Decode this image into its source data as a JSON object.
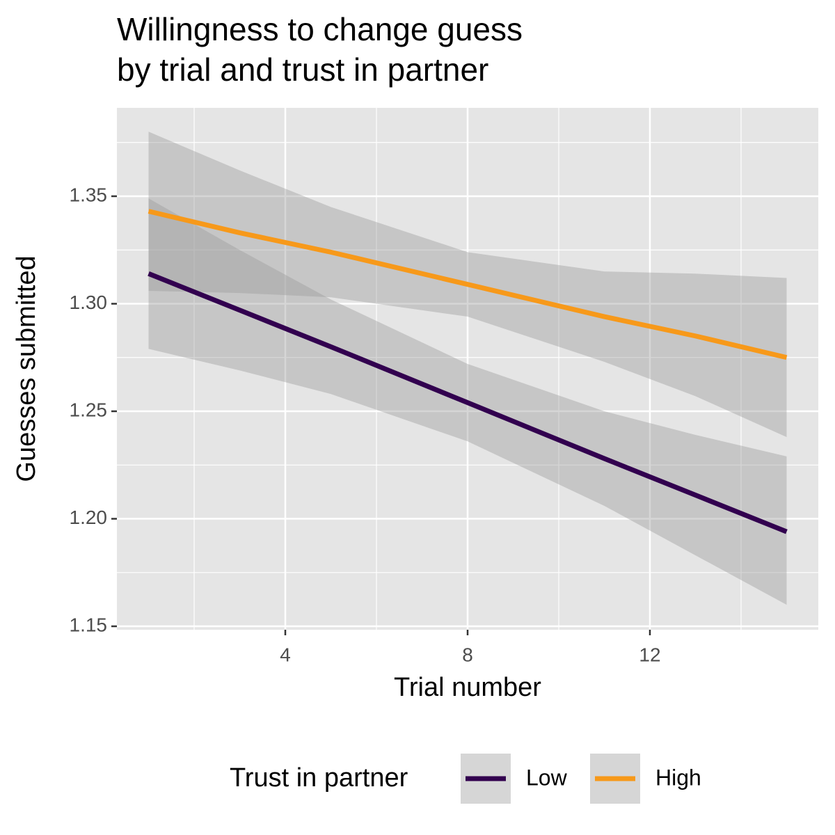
{
  "chart_data": {
    "type": "line",
    "title": [
      "Willingness to change guess",
      "by trial and trust in partner"
    ],
    "x_label": "Trial number",
    "y_label": "Guesses submitted",
    "x": [
      1,
      3,
      5,
      8,
      11,
      13,
      15
    ],
    "series": [
      {
        "name": "Low",
        "color": "#32004f",
        "values": [
          1.314,
          1.297,
          1.28,
          1.254,
          1.228,
          1.211,
          1.194
        ],
        "lower": [
          1.279,
          1.269,
          1.258,
          1.236,
          1.206,
          1.183,
          1.16
        ],
        "upper": [
          1.349,
          1.325,
          1.302,
          1.272,
          1.25,
          1.239,
          1.229
        ]
      },
      {
        "name": "High",
        "color": "#f7991a",
        "values": [
          1.343,
          1.333,
          1.324,
          1.309,
          1.294,
          1.285,
          1.275
        ],
        "lower": [
          1.306,
          1.305,
          1.303,
          1.294,
          1.273,
          1.257,
          1.238
        ],
        "upper": [
          1.38,
          1.362,
          1.345,
          1.324,
          1.315,
          1.314,
          1.312
        ]
      }
    ],
    "band_color": "#999999",
    "legend_title": "Trust in partner",
    "legend_position": "bottom",
    "xlim": [
      0.305,
      15.695
    ],
    "xticks": [
      4,
      8,
      12
    ],
    "ylim": [
      1.1484,
      1.3911
    ],
    "yticks": [
      1.15,
      {
        "value": 1.2,
        "label": "1.20"
      },
      1.25,
      {
        "value": 1.3,
        "label": "1.30"
      },
      1.35
    ],
    "grid": true
  }
}
